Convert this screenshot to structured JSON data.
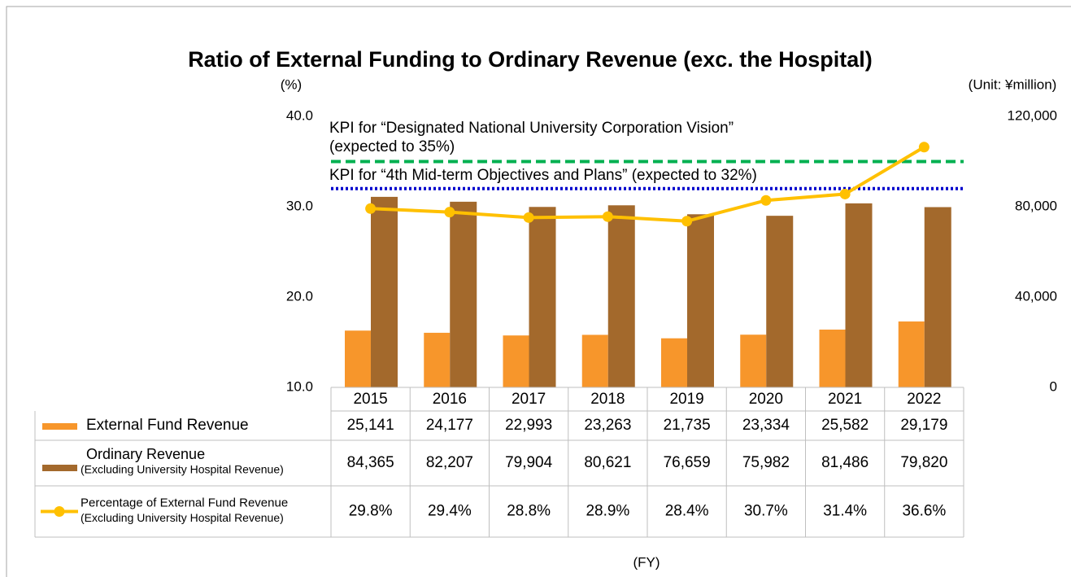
{
  "chart_data": {
    "type": "bar_line_table",
    "title": "Ratio of External Funding to Ordinary Revenue (exc. the Hospital)",
    "y_label": "(%)",
    "y2_label": "(Unit: ¥million)",
    "x_label": "(FY)",
    "categories": [
      "2015",
      "2016",
      "2017",
      "2018",
      "2019",
      "2020",
      "2021",
      "2022"
    ],
    "ylim": [
      10,
      40
    ],
    "yticks": [
      {
        "value": 10,
        "label": "10.0"
      },
      {
        "value": 20,
        "label": "20.0"
      },
      {
        "value": 30,
        "label": "30.0"
      },
      {
        "value": 40,
        "label": "40.0"
      }
    ],
    "y2lim": [
      0,
      120000
    ],
    "y2ticks": [
      0,
      {
        "value": 40000,
        "label": "40,000"
      },
      {
        "value": 80000,
        "label": "80,000"
      },
      {
        "value": 120000,
        "label": "120,000"
      }
    ],
    "series": [
      {
        "name": "External Fund Revenue",
        "type": "bar",
        "axis": "y2",
        "color": "#f7962b",
        "values": [
          25141,
          24177,
          22993,
          23263,
          21735,
          23334,
          25582,
          29179
        ],
        "value_labels": [
          "25,141",
          "24,177",
          "22,993",
          "23,263",
          "21,735",
          "23,334",
          "25,582",
          "29,179"
        ]
      },
      {
        "name": "Ordinary Revenue",
        "subname": "(Excluding University Hospital Revenue)",
        "type": "bar",
        "axis": "y2",
        "color": "#a3692c",
        "values": [
          84365,
          82207,
          79904,
          80621,
          76659,
          75982,
          81486,
          79820
        ],
        "value_labels": [
          "84,365",
          "82,207",
          "79,904",
          "80,621",
          "76,659",
          "75,982",
          "81,486",
          "79,820"
        ]
      },
      {
        "name": "Percentage of External Fund Revenue",
        "subname": "(Excluding University Hospital Revenue)",
        "type": "line",
        "axis": "y",
        "color": "#ffc000",
        "values": [
          29.8,
          29.4,
          28.8,
          28.9,
          28.4,
          30.7,
          31.4,
          36.6
        ],
        "value_labels": [
          "29.8%",
          "29.4%",
          "28.8%",
          "28.9%",
          "28.4%",
          "30.7%",
          "31.4%",
          "36.6%"
        ]
      }
    ],
    "reference_lines": [
      {
        "value": 35,
        "color": "#00b050",
        "style": "dashed",
        "label": [
          "KPI for “Designated National University Corporation Vision”",
          "(expected to 35%)"
        ]
      },
      {
        "value": 32,
        "color": "#0000cc",
        "style": "dotted",
        "label": [
          "KPI for “4th Mid-term Objectives and Plans” (expected to 32%)"
        ]
      }
    ]
  }
}
